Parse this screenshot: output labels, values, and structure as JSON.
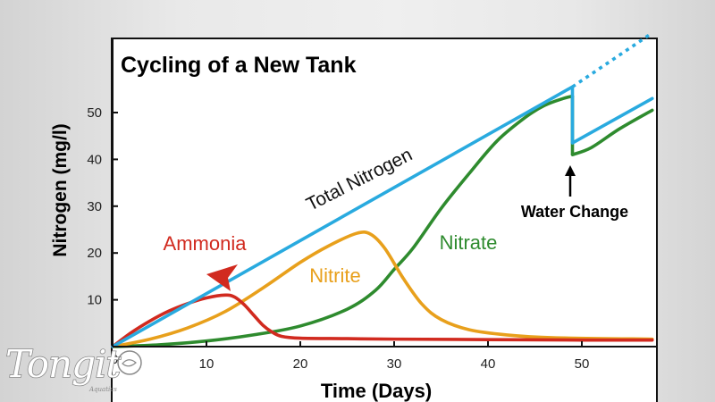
{
  "chart_data": {
    "type": "line",
    "title": "Cycling of a New Tank",
    "xlabel": "Time (Days)",
    "ylabel": "Nitrogen (mg/l)",
    "xlim": [
      0,
      57.5
    ],
    "ylim": [
      0,
      67
    ],
    "xticks": [
      10,
      20,
      30,
      40,
      50
    ],
    "yticks": [
      10,
      20,
      30,
      40,
      50
    ],
    "x_zero_label": "0",
    "grid": false,
    "series": [
      {
        "name": "Total Nitrogen",
        "color": "#29aadf",
        "points": [
          [
            0,
            0
          ],
          [
            49,
            55.5
          ]
        ],
        "after_change": [
          [
            49,
            43.5
          ],
          [
            57.5,
            53
          ]
        ],
        "projection": [
          [
            49,
            55.5
          ],
          [
            57.5,
            67
          ]
        ]
      },
      {
        "name": "Ammonia",
        "color": "#d12a1f",
        "points": [
          [
            0,
            0
          ],
          [
            2,
            3
          ],
          [
            4,
            5.5
          ],
          [
            6,
            7.6
          ],
          [
            8,
            9.2
          ],
          [
            10,
            10.4
          ],
          [
            12,
            11
          ],
          [
            13,
            10.6
          ],
          [
            14,
            9
          ],
          [
            15,
            6.8
          ],
          [
            16,
            4.6
          ],
          [
            17,
            3.1
          ],
          [
            18,
            2.2
          ],
          [
            20,
            1.8
          ],
          [
            25,
            1.7
          ],
          [
            30,
            1.6
          ],
          [
            40,
            1.5
          ],
          [
            50,
            1.4
          ],
          [
            57.5,
            1.4
          ]
        ]
      },
      {
        "name": "Nitrite",
        "color": "#e8a01c",
        "points": [
          [
            0,
            0
          ],
          [
            4,
            1.6
          ],
          [
            8,
            4
          ],
          [
            12,
            7.5
          ],
          [
            16,
            12.5
          ],
          [
            20,
            18
          ],
          [
            23,
            21.5
          ],
          [
            26,
            24.2
          ],
          [
            27.5,
            24
          ],
          [
            29,
            21
          ],
          [
            31,
            14.5
          ],
          [
            33,
            9
          ],
          [
            35,
            5.8
          ],
          [
            38,
            3.6
          ],
          [
            42,
            2.5
          ],
          [
            47,
            1.9
          ],
          [
            57.5,
            1.6
          ]
        ]
      },
      {
        "name": "Nitrate",
        "color": "#2e8b2e",
        "points": [
          [
            0,
            0
          ],
          [
            5,
            0.4
          ],
          [
            10,
            1.2
          ],
          [
            15,
            2.5
          ],
          [
            20,
            4.4
          ],
          [
            25,
            8
          ],
          [
            28,
            12
          ],
          [
            30,
            16.5
          ],
          [
            32,
            21
          ],
          [
            35,
            29.5
          ],
          [
            38,
            37
          ],
          [
            41,
            44
          ],
          [
            44,
            49
          ],
          [
            46,
            51.5
          ],
          [
            48,
            53
          ],
          [
            49,
            53.5
          ]
        ],
        "after_change": [
          [
            49,
            41
          ],
          [
            51,
            42.5
          ],
          [
            54,
            46.5
          ],
          [
            57.5,
            50.5
          ]
        ]
      }
    ],
    "annotations": [
      {
        "text": "Water Change",
        "x": 49,
        "y": 41
      },
      {
        "text": "Total Nitrogen",
        "x": 27,
        "y": 41
      },
      {
        "text": "Ammonia",
        "x": 12,
        "y": 20
      },
      {
        "text": "Nitrite",
        "x": 25,
        "y": 15
      },
      {
        "text": "Nitrate",
        "x": 38,
        "y": 21
      }
    ]
  },
  "watermark": {
    "text": "Tongit",
    "subtext": "Aquatics"
  }
}
